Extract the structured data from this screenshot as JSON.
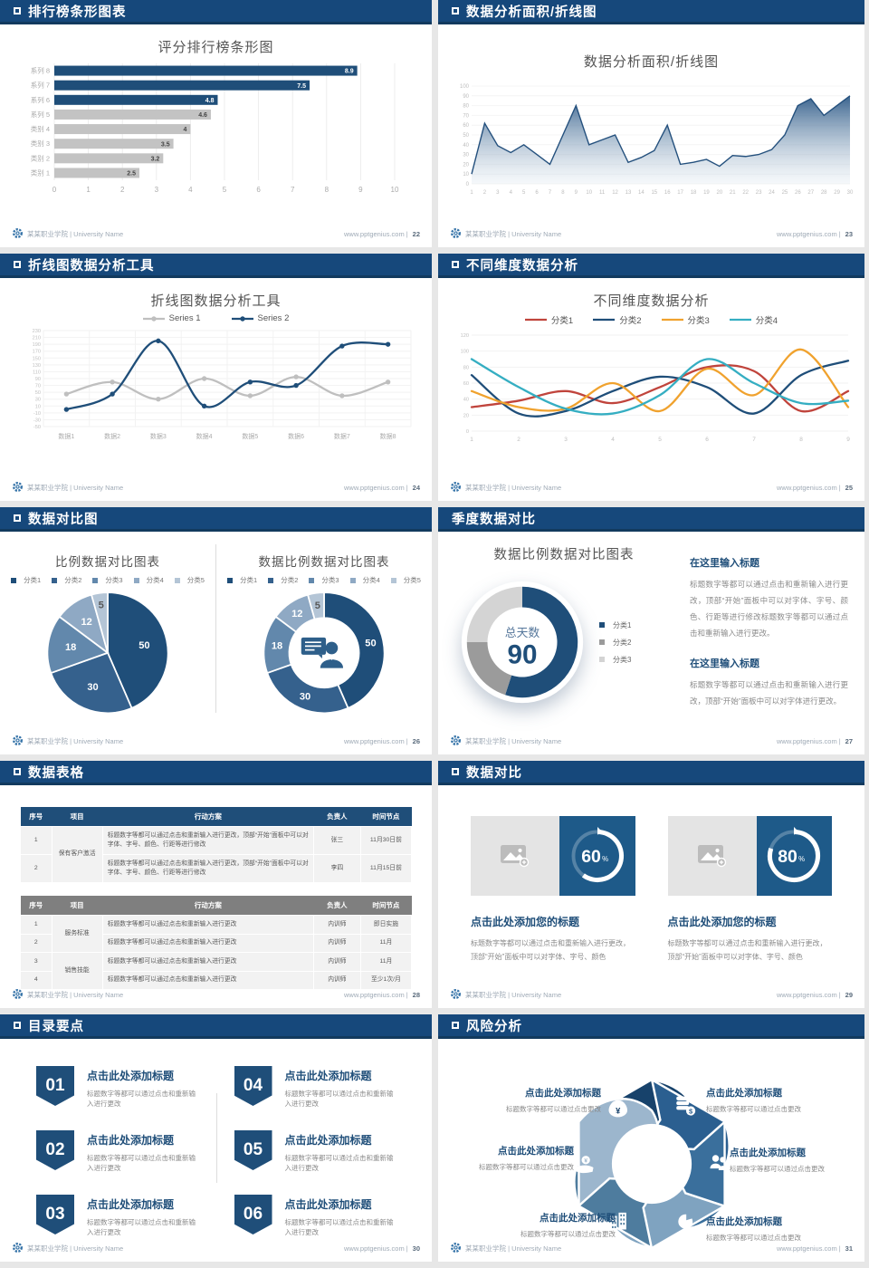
{
  "footer": {
    "org": "某某职业学院 | University Name",
    "site": "www.pptgenius.com",
    "sep": "|"
  },
  "accent_colors": {
    "header_bar": "#16487B",
    "primary_blue": "#1F4E79",
    "panel_blue": "#1E5A89",
    "bar_gray": "#C3C3C3"
  },
  "slides": [
    {
      "header": "排行榜条形图表",
      "page": "22",
      "title": "评分排行榜条形图"
    },
    {
      "header": "数据分析面积/折线图",
      "page": "23",
      "title": "数据分析面积/折线图"
    },
    {
      "header": "折线图数据分析工具",
      "page": "24",
      "title": "折线图数据分析工具"
    },
    {
      "header": "不同维度数据分析",
      "page": "25",
      "title": "不同维度数据分析"
    },
    {
      "header": "数据对比图",
      "page": "26",
      "title_left": "比例数据对比图表",
      "title_right": "数据比例数据对比图表"
    },
    {
      "header": "季度数据对比",
      "page": "27",
      "title": "数据比例数据对比图表",
      "center_label": "总天数",
      "center_value": "90",
      "blocks": [
        {
          "h": "在这里输入标题",
          "p": "标题数字等都可以通过点击和重新输入进行更改，顶部“开始”面板中可以对字体、字号、颜色、行距等进行修改标题数字等都可以通过点击和重新输入进行更改。"
        },
        {
          "h": "在这里输入标题",
          "p": "标题数字等都可以通过点击和重新输入进行更改，顶部“开始”面板中可以对字体进行更改。"
        }
      ]
    },
    {
      "header": "数据表格",
      "page": "28",
      "table1": {
        "headers": [
          "序号",
          "项目",
          "行动方案",
          "负责人",
          "时间节点"
        ],
        "project": "保有客户激活",
        "plan": "标题数字等都可以通过点击和重新输入进行更改，顶部“开始”面板中可以对字体、字号、颜色、行距等进行修改",
        "rows": [
          {
            "no": "1",
            "owner": "张三",
            "time": "11月30日前"
          },
          {
            "no": "2",
            "owner": "李四",
            "time": "11月15日前"
          }
        ]
      },
      "table2": {
        "headers": [
          "序号",
          "项目",
          "行动方案",
          "负责人",
          "时间节点"
        ],
        "projects": [
          "服务标准",
          "销售技能"
        ],
        "plan": "标题数字等都可以通过点击和重新输入进行更改",
        "rows": [
          {
            "no": "1",
            "owner": "内训师",
            "time": "即日实施"
          },
          {
            "no": "2",
            "owner": "内训师",
            "time": "11月"
          },
          {
            "no": "3",
            "owner": "内训师",
            "time": "11月"
          },
          {
            "no": "4",
            "owner": "内训师",
            "time": "至少1次/月"
          }
        ]
      }
    },
    {
      "header": "数据对比",
      "page": "29",
      "card_title": "点击此处添加您的标题",
      "card_body": "标题数字等都可以通过点击和重新输入进行更改，顶部“开始”面板中可以对字体、字号、颜色"
    },
    {
      "header": "目录要点",
      "page": "30",
      "item_title": "点击此处添加标题",
      "item_body": "标题数字等都可以通过点击和重新输入进行更改",
      "nums": [
        "01",
        "02",
        "03",
        "04",
        "05",
        "06"
      ]
    },
    {
      "header": "风险分析",
      "page": "31",
      "item_title": "点击此处添加标题",
      "item_body": "标题数字等都可以通过点击更改"
    }
  ],
  "chart_data": [
    {
      "id": "ranking-bar",
      "type": "bar",
      "orientation": "horizontal",
      "title": "评分排行榜条形图",
      "categories": [
        "系列 8",
        "系列 7",
        "系列 6",
        "系列 5",
        "类别 4",
        "类别 3",
        "类别 2",
        "类别 1"
      ],
      "values": [
        8.9,
        7.5,
        4.8,
        4.6,
        4,
        3.5,
        3.2,
        2.5
      ],
      "bar_colors": [
        "#1F4E79",
        "#1F4E79",
        "#1F4E79",
        "#C3C3C3",
        "#C3C3C3",
        "#C3C3C3",
        "#C3C3C3",
        "#C3C3C3"
      ],
      "xlim": [
        0,
        10
      ],
      "xticks": [
        0,
        1,
        2,
        3,
        4,
        5,
        6,
        7,
        8,
        9,
        10
      ],
      "grid": true
    },
    {
      "id": "area-line",
      "type": "area",
      "title": "数据分析面积/折线图",
      "x": [
        1,
        2,
        3,
        4,
        5,
        6,
        7,
        8,
        9,
        10,
        11,
        12,
        13,
        14,
        15,
        16,
        17,
        18,
        19,
        20,
        21,
        22,
        23,
        24,
        25,
        26,
        27,
        28,
        29,
        30
      ],
      "values": [
        10,
        62,
        39,
        32,
        40,
        30,
        20,
        50,
        80,
        40,
        45,
        50,
        22,
        27,
        34,
        60,
        20,
        22,
        25,
        18,
        29,
        28,
        30,
        35,
        50,
        80,
        87,
        70,
        80,
        90
      ],
      "ylim": [
        0,
        100
      ],
      "ytick_step": 10,
      "line_color": "#24507D",
      "fill_top": "#2F5B88",
      "fill_bottom": "#E3EBF2"
    },
    {
      "id": "tool-line",
      "type": "line",
      "title": "折线图数据分析工具",
      "categories": [
        "数据1",
        "数据2",
        "数据3",
        "数据4",
        "数据5",
        "数据6",
        "数据7",
        "数据8"
      ],
      "series": [
        {
          "name": "Series 1",
          "color": "#BFBFBF",
          "values": [
            45,
            80,
            30,
            90,
            40,
            95,
            40,
            80
          ]
        },
        {
          "name": "Series 2",
          "color": "#1F4E79",
          "values": [
            0,
            45,
            200,
            10,
            80,
            70,
            185,
            190
          ]
        }
      ],
      "ylim": [
        -50,
        230
      ],
      "ytick_step": 20,
      "markers": true,
      "legend_position": "top"
    },
    {
      "id": "dim-line",
      "type": "line",
      "title": "不同维度数据分析",
      "x": [
        1,
        2,
        3,
        4,
        5,
        6,
        7,
        8,
        9
      ],
      "series": [
        {
          "name": "分类1",
          "color": "#C0443C",
          "values": [
            30,
            38,
            50,
            35,
            55,
            80,
            75,
            25,
            50
          ]
        },
        {
          "name": "分类2",
          "color": "#1F4E79",
          "values": [
            70,
            22,
            25,
            50,
            68,
            55,
            22,
            70,
            88
          ]
        },
        {
          "name": "分类3",
          "color": "#F0A22E",
          "values": [
            50,
            30,
            28,
            60,
            25,
            78,
            45,
            102,
            30
          ]
        },
        {
          "name": "分类4",
          "color": "#35AEC2",
          "values": [
            90,
            55,
            28,
            22,
            45,
            90,
            60,
            35,
            38
          ]
        }
      ],
      "ylim": [
        0,
        120
      ],
      "ytick_step": 20,
      "markers": false,
      "legend_position": "top"
    },
    {
      "id": "ratio-pie",
      "type": "pie",
      "title": "比例数据对比图表",
      "labels": [
        "分类1",
        "分类2",
        "分类3",
        "分类4",
        "分类5"
      ],
      "values": [
        50,
        30,
        18,
        12,
        5
      ],
      "colors": [
        "#1F4E79",
        "#35618D",
        "#6288AC",
        "#8FA9C4",
        "#B4C5D6"
      ],
      "label_colors": [
        "#ffffff",
        "#ffffff",
        "#ffffff",
        "#ffffff",
        "#595959"
      ]
    },
    {
      "id": "ratio-donut",
      "type": "donut",
      "title": "数据比例数据对比图表",
      "labels": [
        "分类1",
        "分类2",
        "分类3",
        "分类4",
        "分类5"
      ],
      "values": [
        50,
        30,
        18,
        12,
        5
      ],
      "colors": [
        "#1F4E79",
        "#35618D",
        "#6288AC",
        "#8FA9C4",
        "#B4C5D6"
      ],
      "label_colors": [
        "#ffffff",
        "#ffffff",
        "#ffffff",
        "#ffffff",
        "#595959"
      ],
      "center_icon": "person-speech"
    },
    {
      "id": "days-donut",
      "type": "donut",
      "title": "数据比例数据对比图表",
      "labels": [
        "分类1",
        "分类2",
        "分类3"
      ],
      "values": [
        55,
        20,
        25
      ],
      "colors": [
        "#1F4E79",
        "#9B9B9B",
        "#D4D4D4"
      ],
      "center_label": "总天数",
      "center_value": "90"
    },
    {
      "id": "progress-rings",
      "type": "ring",
      "values": [
        60,
        80
      ],
      "unit": "%",
      "ring_color": "#FFFFFF"
    },
    {
      "id": "risk-pinwheel",
      "type": "pinwheel",
      "blade_colors": [
        "#17426B",
        "#2B5F90",
        "#3A6F9C",
        "#7FA3C0",
        "#4E7C9E",
        "#9CB6CD"
      ],
      "icons": [
        "money-bag",
        "coins",
        "people",
        "pie-chart",
        "building",
        "hand-coin"
      ]
    }
  ]
}
